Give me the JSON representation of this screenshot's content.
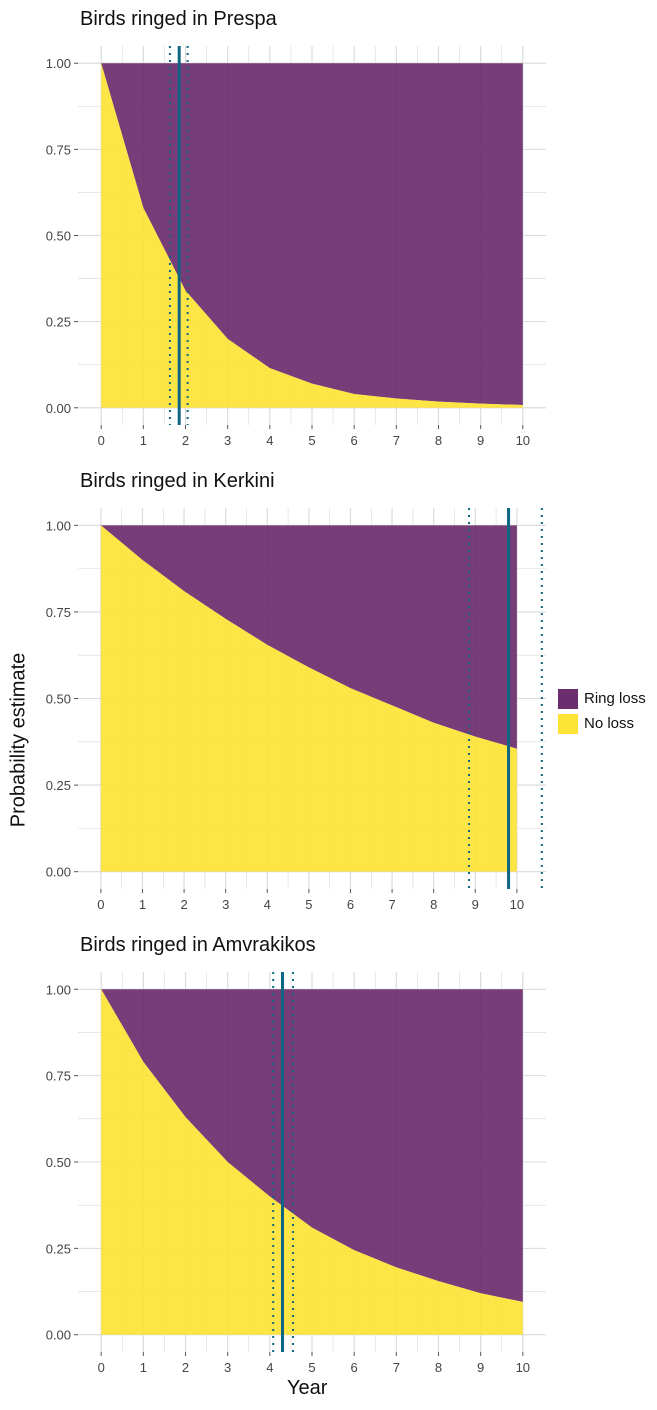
{
  "chart_data": [
    {
      "type": "area",
      "title": "Birds ringed in Prespa",
      "x": [
        0,
        1,
        2,
        3,
        4,
        5,
        6,
        7,
        8,
        9,
        10
      ],
      "series": [
        {
          "name": "No loss",
          "values": [
            1.0,
            0.58,
            0.34,
            0.2,
            0.115,
            0.07,
            0.04,
            0.027,
            0.018,
            0.012,
            0.008
          ]
        },
        {
          "name": "Ring loss",
          "values": [
            0.0,
            0.42,
            0.66,
            0.8,
            0.885,
            0.93,
            0.96,
            0.973,
            0.982,
            0.988,
            0.992
          ]
        }
      ],
      "vline": {
        "estimate": 1.85,
        "lower": 1.63,
        "upper": 2.05
      },
      "xlim": [
        -0.55,
        10.55
      ],
      "ylim": [
        -0.05,
        1.05
      ],
      "xticks": [
        "0",
        "1",
        "2",
        "3",
        "4",
        "5",
        "6",
        "7",
        "8",
        "9",
        "10"
      ],
      "yticks": [
        "0.00",
        "0.25",
        "0.50",
        "0.75",
        "1.00"
      ]
    },
    {
      "type": "area",
      "title": "Birds ringed in Kerkini",
      "x": [
        0,
        1,
        2,
        3,
        4,
        5,
        6,
        7,
        8,
        9,
        10
      ],
      "series": [
        {
          "name": "No loss",
          "values": [
            1.0,
            0.9,
            0.81,
            0.73,
            0.655,
            0.59,
            0.53,
            0.48,
            0.43,
            0.39,
            0.355
          ]
        },
        {
          "name": "Ring loss",
          "values": [
            0.0,
            0.1,
            0.19,
            0.27,
            0.345,
            0.41,
            0.47,
            0.52,
            0.57,
            0.61,
            0.645
          ]
        }
      ],
      "vline": {
        "estimate": 9.8,
        "lower": 8.85,
        "upper": 10.6
      },
      "xlim": [
        -0.55,
        10.7
      ],
      "ylim": [
        -0.05,
        1.05
      ],
      "xticks": [
        "0",
        "1",
        "2",
        "3",
        "4",
        "5",
        "6",
        "7",
        "8",
        "9",
        "10"
      ],
      "yticks": [
        "0.00",
        "0.25",
        "0.50",
        "0.75",
        "1.00"
      ]
    },
    {
      "type": "area",
      "title": "Birds ringed in Amvrakikos",
      "x": [
        0,
        1,
        2,
        3,
        4,
        5,
        6,
        7,
        8,
        9,
        10
      ],
      "series": [
        {
          "name": "No loss",
          "values": [
            1.0,
            0.79,
            0.63,
            0.5,
            0.4,
            0.31,
            0.245,
            0.195,
            0.155,
            0.12,
            0.095
          ]
        },
        {
          "name": "Ring loss",
          "values": [
            0.0,
            0.21,
            0.37,
            0.5,
            0.6,
            0.69,
            0.755,
            0.805,
            0.845,
            0.88,
            0.905
          ]
        }
      ],
      "vline": {
        "estimate": 4.3,
        "lower": 4.08,
        "upper": 4.55
      },
      "xlim": [
        -0.55,
        10.55
      ],
      "ylim": [
        -0.05,
        1.05
      ],
      "xticks": [
        "0",
        "1",
        "2",
        "3",
        "4",
        "5",
        "6",
        "7",
        "8",
        "9",
        "10"
      ],
      "yticks": [
        "0.00",
        "0.25",
        "0.50",
        "0.75",
        "1.00"
      ]
    }
  ],
  "axes": {
    "xlabel": "Year",
    "ylabel": "Probability estimate"
  },
  "legend": {
    "position": "right",
    "items": [
      {
        "label": "Ring loss",
        "color": "#6b2d6e"
      },
      {
        "label": "No loss",
        "color": "#fde336"
      }
    ]
  },
  "colors": {
    "ring_loss": "#6b2d6e",
    "no_loss": "#fde336",
    "vline": "#0e6683",
    "grid": "#d9d9d9"
  }
}
